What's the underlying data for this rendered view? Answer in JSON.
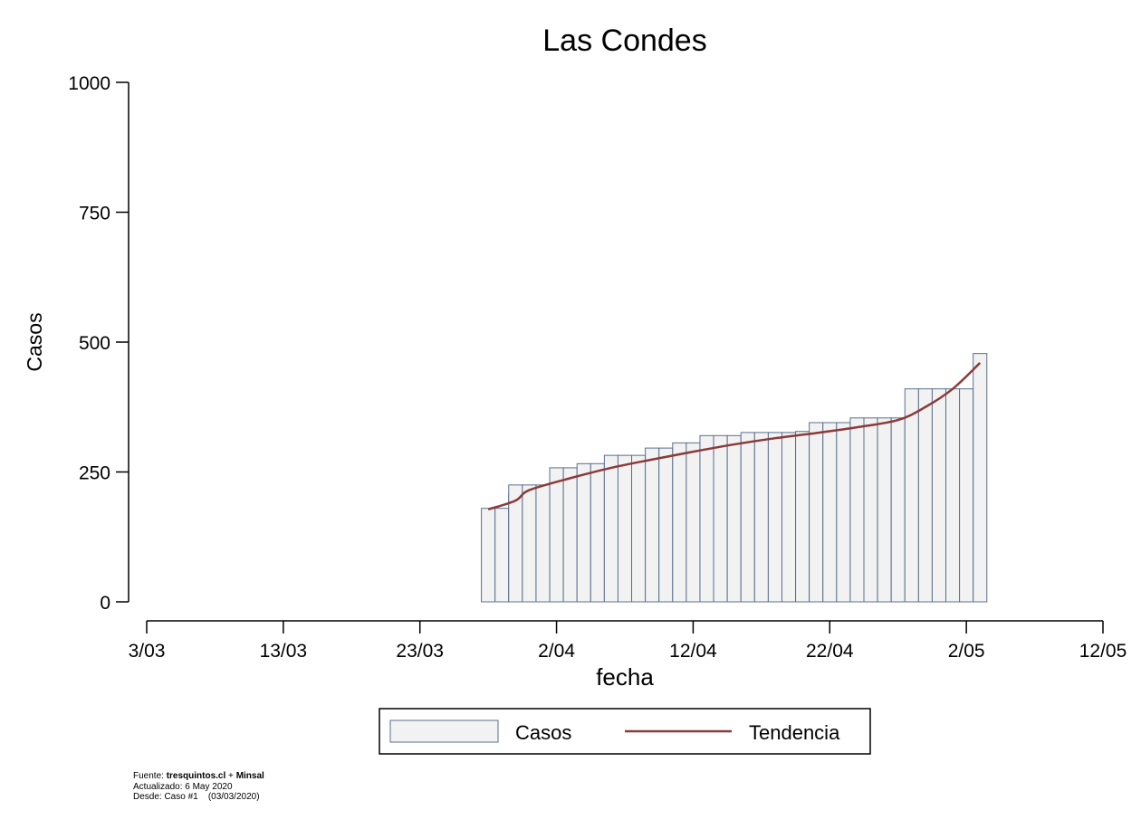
{
  "chart_data": {
    "type": "bar",
    "title": "Las Condes",
    "xlabel": "fecha",
    "ylabel": "Casos",
    "ylim": [
      0,
      1000
    ],
    "yticks": [
      0,
      250,
      500,
      750,
      1000
    ],
    "yticks_labels": [
      "0",
      "250",
      "500",
      "750",
      "1000"
    ],
    "xticks": [
      0,
      10,
      20,
      30,
      40,
      50,
      60,
      70
    ],
    "xticks_labels": [
      "3/03",
      "13/03",
      "23/03",
      "2/04",
      "12/04",
      "22/04",
      "2/05",
      "12/05"
    ],
    "xlim": [
      0,
      70
    ],
    "grid": false,
    "legend_position": "bottom",
    "series": [
      {
        "name": "Casos",
        "type": "bar",
        "color": "#f2f2f2",
        "edge_color": "#5b6f8c",
        "x": [
          "28/03",
          "29/03",
          "30/03",
          "31/03",
          "1/04",
          "2/04",
          "3/04",
          "4/04",
          "5/04",
          "6/04",
          "7/04",
          "8/04",
          "9/04",
          "10/04",
          "11/04",
          "12/04",
          "13/04",
          "14/04",
          "15/04",
          "16/04",
          "17/04",
          "18/04",
          "19/04",
          "20/04",
          "21/04",
          "22/04",
          "23/04",
          "24/04",
          "25/04",
          "26/04",
          "27/04",
          "28/04",
          "29/04",
          "30/04",
          "1/05",
          "2/05",
          "3/05",
          "4/05",
          "5/05"
        ],
        "values": [
          180,
          180,
          208,
          208,
          225,
          225,
          225,
          258,
          258,
          266,
          266,
          282,
          282,
          282,
          296,
          296,
          306,
          306,
          320,
          320,
          320,
          326,
          326,
          326,
          326,
          328,
          345,
          345,
          345,
          354,
          354,
          354,
          354,
          410,
          410,
          410,
          410,
          410,
          478
        ]
      },
      {
        "name": "Tendencia",
        "type": "line",
        "color": "#8b3a3a",
        "x": [
          "28/03",
          "30/03",
          "2/04",
          "5/04",
          "8/04",
          "11/04",
          "14/04",
          "17/04",
          "20/04",
          "23/04",
          "26/04",
          "29/04",
          "1/05",
          "3/05",
          "5/05"
        ],
        "values": [
          178,
          195,
          215,
          238,
          258,
          274,
          289,
          303,
          315,
          325,
          336,
          350,
          375,
          410,
          460
        ]
      }
    ]
  },
  "footnote": {
    "line1_prefix": "Fuente: ",
    "line1_source": "tresquintos.cl",
    "line1_sep": " + ",
    "line1_source2": "Minsal",
    "line2": "Actualizado: 6 May 2020",
    "line3": "Desde: Caso #1    (03/03/2020)"
  }
}
